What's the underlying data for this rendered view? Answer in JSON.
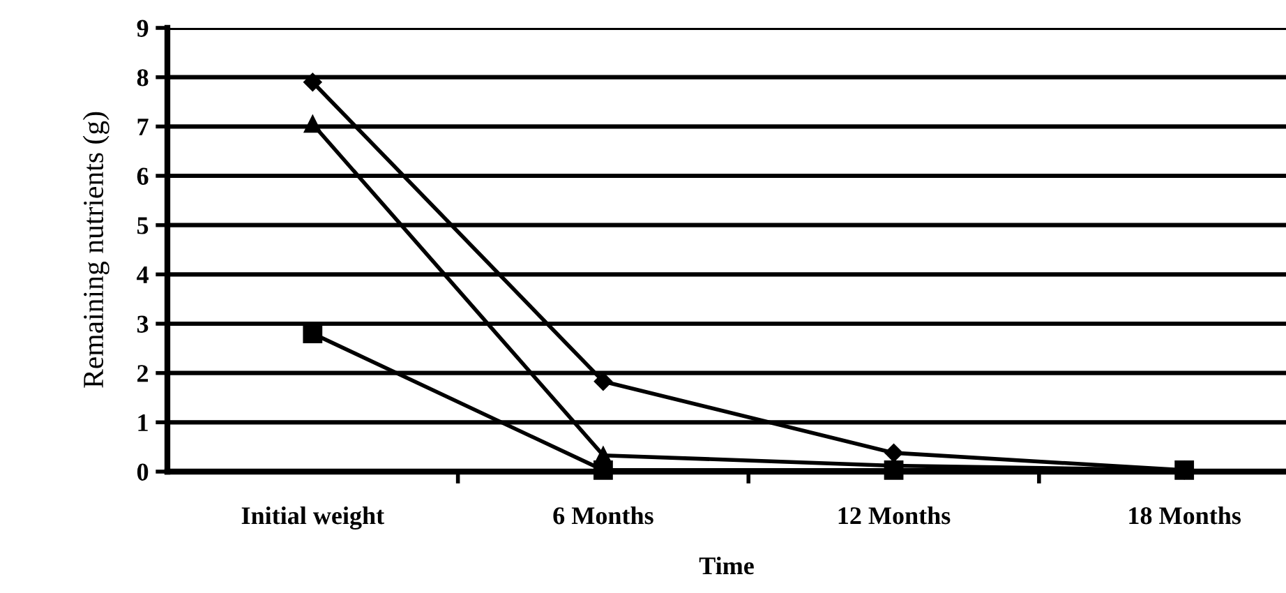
{
  "chart_data": {
    "type": "line",
    "xlabel": "Time",
    "ylabel": "Remaining nutrients (g)",
    "categories": [
      "Initial weight",
      "6 Months",
      "12 Months",
      "18 Months"
    ],
    "series": [
      {
        "color": "#000000",
        "marker": "diamond",
        "values": [
          7.9,
          1.83,
          0.38,
          0.03
        ]
      },
      {
        "color": "#000000",
        "marker": "triangle",
        "values": [
          7.05,
          0.33,
          0.12,
          0.03
        ]
      },
      {
        "color": "#000000",
        "marker": "square",
        "values": [
          2.8,
          0.03,
          0.03,
          0.03
        ]
      }
    ],
    "ylim": [
      0,
      9
    ],
    "yticks": [
      0,
      1,
      2,
      3,
      4,
      5,
      6,
      7,
      8,
      9
    ],
    "grid": "y",
    "line_style": "solid"
  }
}
